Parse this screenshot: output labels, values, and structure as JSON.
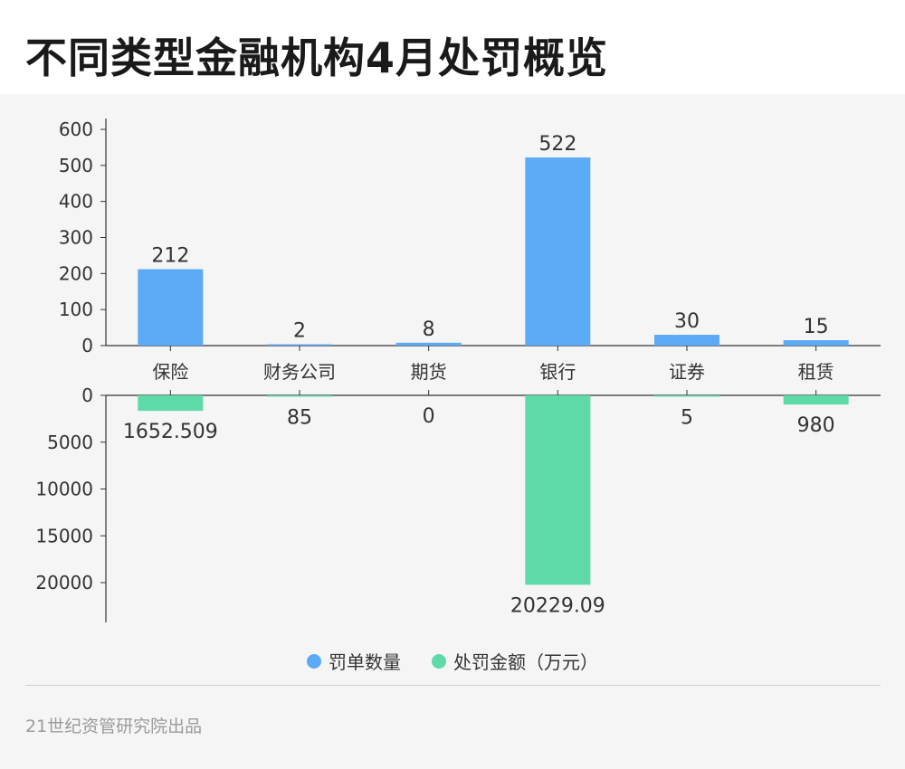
{
  "title": "不同类型金融机构4月处罚概览",
  "footer": "21世纪资管研究院出品",
  "colors": {
    "count": "#5aaaf5",
    "amount": "#5ed9a8"
  },
  "chart_data": {
    "type": "bar",
    "categories": [
      "保险",
      "财务公司",
      "期货",
      "银行",
      "证券",
      "租赁"
    ],
    "series": [
      {
        "name": "罚单数量",
        "values": [
          212,
          2,
          8,
          522,
          30,
          15
        ],
        "labels": [
          "212",
          "2",
          "8",
          "522",
          "30",
          "15"
        ]
      },
      {
        "name": "处罚金额（万元）",
        "values": [
          1652.509,
          85,
          0,
          20229.09,
          5,
          980
        ],
        "labels": [
          "1652.509",
          "85",
          "0",
          "20229.09",
          "5",
          "980"
        ]
      }
    ],
    "top_axis": {
      "ylim": [
        0,
        600
      ],
      "ticks": [
        "0",
        "100",
        "200",
        "300",
        "400",
        "500",
        "600"
      ]
    },
    "bottom_axis": {
      "ylim": [
        0,
        24000
      ],
      "inverted": true,
      "ticks": [
        "0",
        "5000",
        "10000",
        "15000",
        "20000"
      ]
    },
    "legend_position": "bottom-center",
    "grid": false
  }
}
